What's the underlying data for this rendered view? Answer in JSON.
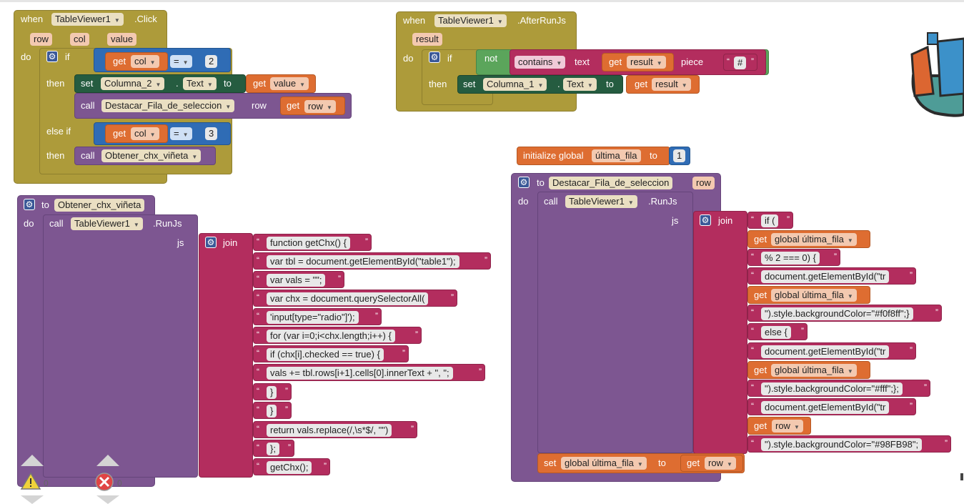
{
  "click_event": {
    "when": "when",
    "component": "TableViewer1",
    "event": ".Click",
    "params": [
      "row",
      "col",
      "value"
    ],
    "do": "do",
    "if_label": "if",
    "get": "get",
    "col": "col",
    "eq": "=",
    "num_two": "2",
    "then": "then",
    "set": "set",
    "label_comp": "Columna_2",
    "prop_text": "Text",
    "to": "to",
    "value": "value",
    "call": "call",
    "proc_destacar": "Destacar_Fila_de_seleccion",
    "row_param": "row",
    "row": "row",
    "else_if": "else if",
    "num_three": "3",
    "proc_obtener": "Obtener_chx_viñeta"
  },
  "afterrun_event": {
    "when": "when",
    "component": "TableViewer1",
    "event": ".AfterRunJs",
    "param": "result",
    "do": "do",
    "if_label": "if",
    "not": "not",
    "contains": "contains",
    "text_label": "text",
    "get": "get",
    "result": "result",
    "piece": "piece",
    "hash": "#",
    "then": "then",
    "set": "set",
    "label_comp": "Columna_1",
    "prop_text": "Text",
    "to": "to"
  },
  "global_init": {
    "initialize": "initialize global",
    "name": "última_fila",
    "to": "to",
    "value": "1"
  },
  "proc_obtener": {
    "to": "to",
    "name": "Obtener_chx_viñeta",
    "do": "do",
    "call": "call",
    "component": "TableViewer1",
    "method": ".RunJs",
    "js": "js",
    "join": "join",
    "strings": [
      "function getChx() {",
      "var tbl = document.getElementById(\"table1\");",
      "var vals = \"\";",
      "var chx = document.querySelectorAll(",
      "'input[type=\"radio\"]');",
      "for (var i=0;i<chx.length;i++) {",
      "if (chx[i].checked == true) {",
      "vals += tbl.rows[i+1].cells[0].innerText + \", \";",
      "}",
      "}",
      "return vals.replace(/,\\s*$/, \"\")",
      "};",
      "getChx();"
    ]
  },
  "proc_destacar": {
    "to": "to",
    "name": "Destacar_Fila_de_seleccion",
    "param": "row",
    "do": "do",
    "call": "call",
    "component": "TableViewer1",
    "method": ".RunJs",
    "js": "js",
    "join": "join",
    "items": [
      {
        "kind": "str",
        "text": "if ("
      },
      {
        "kind": "get",
        "text": "global última_fila"
      },
      {
        "kind": "str",
        "text": "% 2 === 0) {"
      },
      {
        "kind": "str",
        "text": "document.getElementById(\"tr"
      },
      {
        "kind": "get",
        "text": "global última_fila"
      },
      {
        "kind": "str",
        "text": "\").style.backgroundColor=\"#f0f8ff\";}"
      },
      {
        "kind": "str",
        "text": "else {"
      },
      {
        "kind": "str",
        "text": "document.getElementById(\"tr"
      },
      {
        "kind": "get",
        "text": "global última_fila"
      },
      {
        "kind": "str",
        "text": "\").style.backgroundColor=\"#fff\";};"
      },
      {
        "kind": "str",
        "text": "document.getElementById(\"tr"
      },
      {
        "kind": "get",
        "text": "row"
      },
      {
        "kind": "str",
        "text": "\").style.backgroundColor=\"#98FB98\";"
      }
    ],
    "get": "get",
    "set": "set",
    "set_var": "global última_fila",
    "set_to": "to",
    "set_get": "get",
    "set_row": "row"
  },
  "workspace": {
    "warnings_count": "0",
    "errors_count": "0"
  }
}
